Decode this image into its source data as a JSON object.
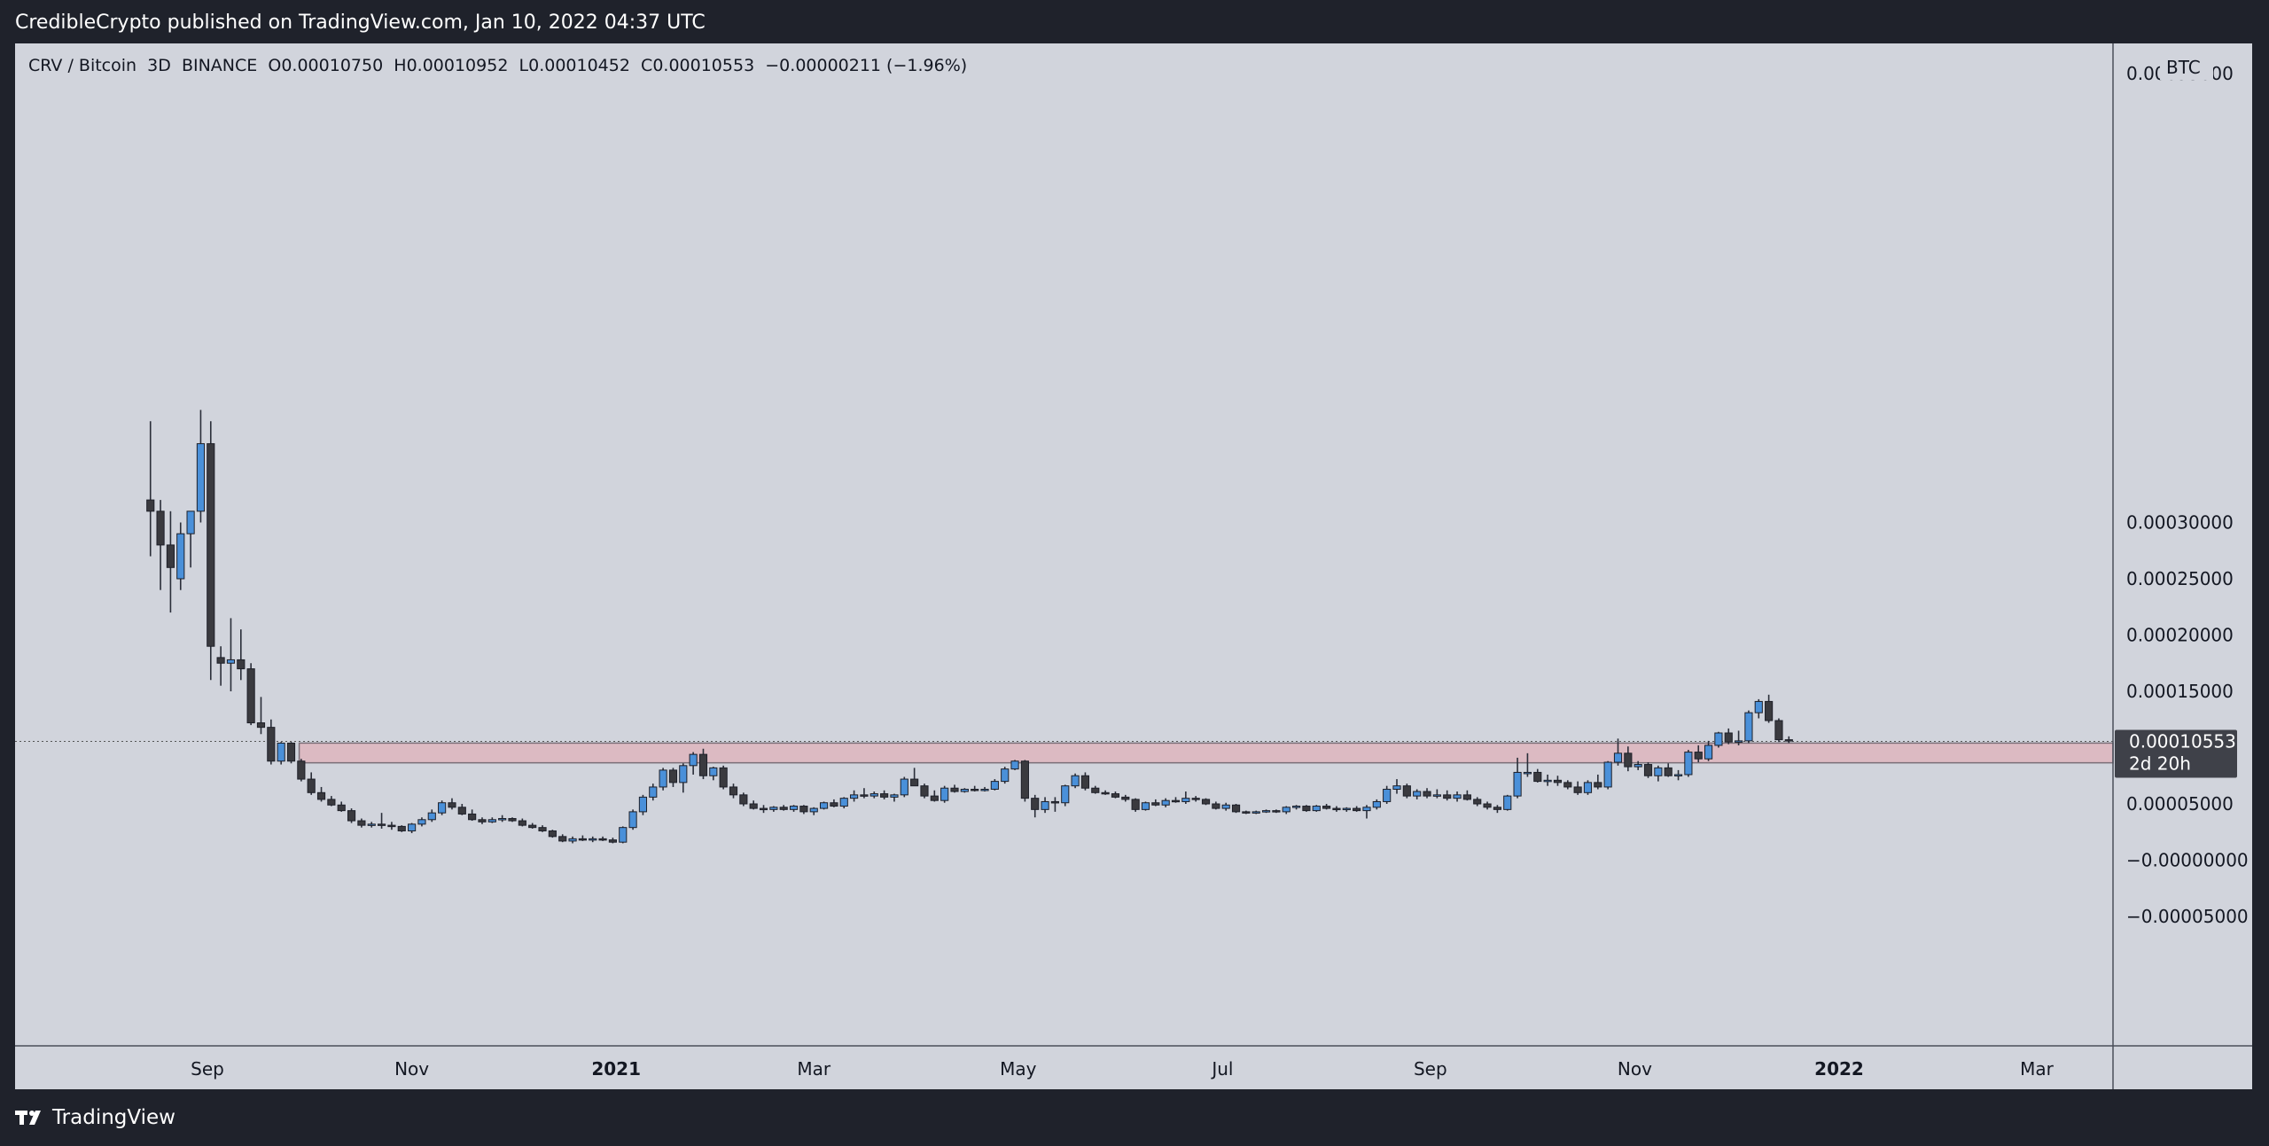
{
  "header": {
    "publisher_line": "CredibleCrypto published on TradingView.com, Jan 10, 2022 04:37 UTC"
  },
  "legend": {
    "symbol": "CRV / Bitcoin  3D  BINANCE",
    "open_label": "O",
    "open": "0.00010750",
    "high_label": "H",
    "high": "0.00010952",
    "low_label": "L",
    "low": "0.00010452",
    "close_label": "C",
    "close": "0.00010553",
    "change": "−0.00000211 (−1.96%)"
  },
  "footer": {
    "brand": "TradingView"
  },
  "price_badge": {
    "price": "0.00010553",
    "countdown": "2d 20h"
  },
  "colors": {
    "background": "#1f222b",
    "panel": "#d1d4dc",
    "up_candle": "#4a90d9",
    "down_candle": "#3a3a3f",
    "zone_fill": "#dcbac2",
    "badge": "#3f4149"
  },
  "chart_data": {
    "type": "candlestick",
    "symbol": "CRV / Bitcoin",
    "interval": "3D",
    "exchange": "BINANCE",
    "currency": "BTC",
    "ylim": [
      -8e-05,
      0.00037
    ],
    "y_ticks": [
      "0.00030000",
      "0.00025000",
      "0.00020000",
      "0.00015000",
      "0.00010000",
      "0.00005000",
      "−0.00000000",
      "−0.00005000"
    ],
    "y_tick_values": [
      0.0003,
      0.00025,
      0.0002,
      0.00015,
      0.0001,
      5e-05,
      0.0,
      -5e-05
    ],
    "x_ticks": [
      "Sep",
      "Nov",
      "2021",
      "Mar",
      "May",
      "Jul",
      "Sep",
      "Nov",
      "2022",
      "Mar"
    ],
    "x_tick_dates": [
      "2020-09-01",
      "2020-11-01",
      "2021-01-01",
      "2021-03-01",
      "2021-05-01",
      "2021-07-01",
      "2021-09-01",
      "2021-11-01",
      "2022-01-01",
      "2022-03-01"
    ],
    "bold_ticks": [
      "2021",
      "2022"
    ],
    "first_candle_date": "2020-08-15",
    "candle_interval_days": 3,
    "last_price": 0.00010553,
    "zone": {
      "low": 8.65e-05,
      "high": 0.000104,
      "color": "#dcbac2"
    },
    "candles": [
      [
        0.00032,
        0.00039,
        0.00027,
        0.00031
      ],
      [
        0.00031,
        0.00032,
        0.00024,
        0.00028
      ],
      [
        0.00028,
        0.00031,
        0.00022,
        0.00026
      ],
      [
        0.00025,
        0.0003,
        0.00024,
        0.00029
      ],
      [
        0.00029,
        0.00031,
        0.00026,
        0.00031
      ],
      [
        0.00031,
        0.0004,
        0.0003,
        0.00037
      ],
      [
        0.00037,
        0.00039,
        0.00016,
        0.00019
      ],
      [
        0.00018,
        0.00019,
        0.000155,
        0.000175
      ],
      [
        0.000175,
        0.000215,
        0.00015,
        0.000178
      ],
      [
        0.000178,
        0.000205,
        0.00016,
        0.00017
      ],
      [
        0.00017,
        0.000175,
        0.00012,
        0.000122
      ],
      [
        0.000122,
        0.000145,
        0.000112,
        0.000118
      ],
      [
        0.000118,
        0.000125,
        8.5e-05,
        8.8e-05
      ],
      [
        8.8e-05,
        0.000105,
        8.5e-05,
        0.000104
      ],
      [
        0.000104,
        0.000105,
        8.6e-05,
        8.8e-05
      ],
      [
        8.8e-05,
        9e-05,
        7e-05,
        7.2e-05
      ],
      [
        7.2e-05,
        7.8e-05,
        5.8e-05,
        6e-05
      ],
      [
        6e-05,
        6.5e-05,
        5.2e-05,
        5.4e-05
      ],
      [
        5.4e-05,
        5.7e-05,
        4.8e-05,
        4.9e-05
      ],
      [
        4.9e-05,
        5.2e-05,
        4.3e-05,
        4.4e-05
      ],
      [
        4.4e-05,
        4.6e-05,
        3.3e-05,
        3.5e-05
      ],
      [
        3.5e-05,
        3.7e-05,
        2.9e-05,
        3.1e-05
      ],
      [
        3.1e-05,
        3.4e-05,
        2.9e-05,
        3.2e-05
      ],
      [
        3.2e-05,
        4.2e-05,
        2.8e-05,
        3.1e-05
      ],
      [
        3.1e-05,
        3.4e-05,
        2.7e-05,
        3e-05
      ],
      [
        3e-05,
        3.1e-05,
        2.5e-05,
        2.6e-05
      ],
      [
        2.6e-05,
        3.3e-05,
        2.4e-05,
        3.2e-05
      ],
      [
        3.2e-05,
        3.8e-05,
        3e-05,
        3.6e-05
      ],
      [
        3.6e-05,
        4.5e-05,
        3.4e-05,
        4.2e-05
      ],
      [
        4.2e-05,
        5.3e-05,
        4e-05,
        5.1e-05
      ],
      [
        5.1e-05,
        5.5e-05,
        4.5e-05,
        4.7e-05
      ],
      [
        4.7e-05,
        5e-05,
        4e-05,
        4.1e-05
      ],
      [
        4.1e-05,
        4.5e-05,
        3.5e-05,
        3.6e-05
      ],
      [
        3.6e-05,
        3.8e-05,
        3.2e-05,
        3.4e-05
      ],
      [
        3.4e-05,
        3.8e-05,
        3.3e-05,
        3.6e-05
      ],
      [
        3.6e-05,
        4e-05,
        3.4e-05,
        3.7e-05
      ],
      [
        3.7e-05,
        3.8e-05,
        3.4e-05,
        3.5e-05
      ],
      [
        3.5e-05,
        3.7e-05,
        3e-05,
        3.1e-05
      ],
      [
        3.1e-05,
        3.3e-05,
        2.8e-05,
        2.9e-05
      ],
      [
        2.9e-05,
        3.1e-05,
        2.5e-05,
        2.6e-05
      ],
      [
        2.6e-05,
        2.7e-05,
        2e-05,
        2.1e-05
      ],
      [
        2.1e-05,
        2.3e-05,
        1.6e-05,
        1.7e-05
      ],
      [
        1.7e-05,
        2.1e-05,
        1.5e-05,
        1.9e-05
      ],
      [
        1.9e-05,
        2.2e-05,
        1.7e-05,
        1.8e-05
      ],
      [
        1.8e-05,
        2.1e-05,
        1.6e-05,
        1.9e-05
      ],
      [
        1.9e-05,
        2.1e-05,
        1.7e-05,
        1.8e-05
      ],
      [
        1.8e-05,
        2e-05,
        1.5e-05,
        1.6e-05
      ],
      [
        1.6e-05,
        3e-05,
        1.5e-05,
        2.9e-05
      ],
      [
        2.9e-05,
        4.5e-05,
        2.7e-05,
        4.3e-05
      ],
      [
        4.3e-05,
        5.8e-05,
        4e-05,
        5.6e-05
      ],
      [
        5.6e-05,
        6.8e-05,
        5.3e-05,
        6.5e-05
      ],
      [
        6.5e-05,
        8.2e-05,
        6.2e-05,
        8e-05
      ],
      [
        8e-05,
        8.2e-05,
        6.5e-05,
        6.9e-05
      ],
      [
        6.9e-05,
        8.6e-05,
        6e-05,
        8.4e-05
      ],
      [
        8.4e-05,
        9.6e-05,
        7.6e-05,
        9.4e-05
      ],
      [
        9.4e-05,
        9.9e-05,
        7.2e-05,
        7.5e-05
      ],
      [
        7.5e-05,
        8.3e-05,
        7.1e-05,
        8.2e-05
      ],
      [
        8.2e-05,
        8.4e-05,
        6.3e-05,
        6.5e-05
      ],
      [
        6.5e-05,
        6.8e-05,
        5.5e-05,
        5.8e-05
      ],
      [
        5.8e-05,
        6e-05,
        4.8e-05,
        5e-05
      ],
      [
        5e-05,
        5.3e-05,
        4.5e-05,
        4.6e-05
      ],
      [
        4.6e-05,
        4.9e-05,
        4.2e-05,
        4.5e-05
      ],
      [
        4.5e-05,
        4.8e-05,
        4.3e-05,
        4.7e-05
      ],
      [
        4.7e-05,
        4.9e-05,
        4.4e-05,
        4.5e-05
      ],
      [
        4.5e-05,
        4.9e-05,
        4.3e-05,
        4.8e-05
      ],
      [
        4.8e-05,
        4.9e-05,
        4.1e-05,
        4.3e-05
      ],
      [
        4.3e-05,
        4.7e-05,
        4e-05,
        4.6e-05
      ],
      [
        4.6e-05,
        5.2e-05,
        4.5e-05,
        5.1e-05
      ],
      [
        5.1e-05,
        5.4e-05,
        4.7e-05,
        4.8e-05
      ],
      [
        4.8e-05,
        5.6e-05,
        4.6e-05,
        5.5e-05
      ],
      [
        5.5e-05,
        6.2e-05,
        5.2e-05,
        5.8e-05
      ],
      [
        5.8e-05,
        6.4e-05,
        5.5e-05,
        5.7e-05
      ],
      [
        5.7e-05,
        6.1e-05,
        5.5e-05,
        5.9e-05
      ],
      [
        5.9e-05,
        6.2e-05,
        5.4e-05,
        5.6e-05
      ],
      [
        5.6e-05,
        5.9e-05,
        5.2e-05,
        5.8e-05
      ],
      [
        5.8e-05,
        7.4e-05,
        5.6e-05,
        7.2e-05
      ],
      [
        7.2e-05,
        8.2e-05,
        6.8e-05,
        6.6e-05
      ],
      [
        6.6e-05,
        6.8e-05,
        5.5e-05,
        5.7e-05
      ],
      [
        5.7e-05,
        6.2e-05,
        5.2e-05,
        5.3e-05
      ],
      [
        5.3e-05,
        6.6e-05,
        5.1e-05,
        6.4e-05
      ],
      [
        6.4e-05,
        6.7e-05,
        6e-05,
        6.1e-05
      ],
      [
        6.1e-05,
        6.4e-05,
        6e-05,
        6.3e-05
      ],
      [
        6.3e-05,
        6.6e-05,
        6.1e-05,
        6.2e-05
      ],
      [
        6.2e-05,
        6.5e-05,
        6.1e-05,
        6.3e-05
      ],
      [
        6.3e-05,
        7.2e-05,
        6.2e-05,
        7e-05
      ],
      [
        7e-05,
        8.3e-05,
        6.8e-05,
        8.1e-05
      ],
      [
        8.1e-05,
        8.9e-05,
        8e-05,
        8.8e-05
      ],
      [
        8.8e-05,
        8.9e-05,
        5.2e-05,
        5.5e-05
      ],
      [
        5.5e-05,
        5.8e-05,
        3.8e-05,
        4.5e-05
      ],
      [
        4.5e-05,
        5.6e-05,
        4.2e-05,
        5.2e-05
      ],
      [
        5.2e-05,
        5.6e-05,
        4.3e-05,
        5.1e-05
      ],
      [
        5.1e-05,
        6.7e-05,
        4.8e-05,
        6.6e-05
      ],
      [
        6.6e-05,
        7.7e-05,
        6.4e-05,
        7.5e-05
      ],
      [
        7.5e-05,
        7.8e-05,
        6.2e-05,
        6.4e-05
      ],
      [
        6.4e-05,
        6.6e-05,
        5.9e-05,
        6e-05
      ],
      [
        6e-05,
        6.2e-05,
        5.8e-05,
        5.9e-05
      ],
      [
        5.9e-05,
        6.1e-05,
        5.5e-05,
        5.6e-05
      ],
      [
        5.6e-05,
        5.8e-05,
        5.2e-05,
        5.4e-05
      ],
      [
        5.4e-05,
        5.5e-05,
        4.3e-05,
        4.5e-05
      ],
      [
        4.5e-05,
        5.2e-05,
        4.4e-05,
        5.1e-05
      ],
      [
        5.1e-05,
        5.4e-05,
        4.8e-05,
        4.9e-05
      ],
      [
        4.9e-05,
        5.5e-05,
        4.7e-05,
        5.3e-05
      ],
      [
        5.3e-05,
        5.6e-05,
        5.1e-05,
        5.2e-05
      ],
      [
        5.2e-05,
        6.1e-05,
        5e-05,
        5.5e-05
      ],
      [
        5.5e-05,
        5.7e-05,
        5.2e-05,
        5.4e-05
      ],
      [
        5.4e-05,
        5.5e-05,
        4.9e-05,
        5e-05
      ],
      [
        5e-05,
        5.2e-05,
        4.5e-05,
        4.6e-05
      ],
      [
        4.6e-05,
        5.1e-05,
        4.4e-05,
        4.9e-05
      ],
      [
        4.9e-05,
        5e-05,
        4.2e-05,
        4.3e-05
      ],
      [
        4.3e-05,
        4.4e-05,
        4.1e-05,
        4.2e-05
      ],
      [
        4.2e-05,
        4.4e-05,
        4.1e-05,
        4.3e-05
      ],
      [
        4.3e-05,
        4.5e-05,
        4.2e-05,
        4.4e-05
      ],
      [
        4.4e-05,
        4.5e-05,
        4.2e-05,
        4.3e-05
      ],
      [
        4.3e-05,
        4.8e-05,
        4.1e-05,
        4.7e-05
      ],
      [
        4.7e-05,
        4.9e-05,
        4.5e-05,
        4.8e-05
      ],
      [
        4.8e-05,
        4.9e-05,
        4.3e-05,
        4.4e-05
      ],
      [
        4.4e-05,
        4.9e-05,
        4.3e-05,
        4.8e-05
      ],
      [
        4.8e-05,
        5e-05,
        4.5e-05,
        4.6e-05
      ],
      [
        4.6e-05,
        4.8e-05,
        4.3e-05,
        4.5e-05
      ],
      [
        4.5e-05,
        4.7e-05,
        4.3e-05,
        4.6e-05
      ],
      [
        4.6e-05,
        4.8e-05,
        4.3e-05,
        4.4e-05
      ],
      [
        4.4e-05,
        4.9e-05,
        3.7e-05,
        4.7e-05
      ],
      [
        4.7e-05,
        5.4e-05,
        4.5e-05,
        5.2e-05
      ],
      [
        5.2e-05,
        6.6e-05,
        5e-05,
        6.3e-05
      ],
      [
        6.3e-05,
        7.2e-05,
        5.9e-05,
        6.6e-05
      ],
      [
        6.6e-05,
        6.8e-05,
        5.5e-05,
        5.7e-05
      ],
      [
        5.7e-05,
        6.3e-05,
        5.4e-05,
        6.1e-05
      ],
      [
        6.1e-05,
        6.4e-05,
        5.5e-05,
        5.7e-05
      ],
      [
        5.7e-05,
        6.3e-05,
        5.5e-05,
        5.8e-05
      ],
      [
        5.8e-05,
        6.2e-05,
        5.3e-05,
        5.5e-05
      ],
      [
        5.5e-05,
        6.1e-05,
        5.2e-05,
        5.8e-05
      ],
      [
        5.8e-05,
        6.2e-05,
        5.3e-05,
        5.4e-05
      ],
      [
        5.4e-05,
        5.6e-05,
        4.8e-05,
        5e-05
      ],
      [
        5e-05,
        5.2e-05,
        4.5e-05,
        4.7e-05
      ],
      [
        4.7e-05,
        4.9e-05,
        4.2e-05,
        4.5e-05
      ],
      [
        4.5e-05,
        5.8e-05,
        4.4e-05,
        5.7e-05
      ],
      [
        5.7e-05,
        9.1e-05,
        5.5e-05,
        7.8e-05
      ],
      [
        7.8e-05,
        9.5e-05,
        7.4e-05,
        7.8e-05
      ],
      [
        7.8e-05,
        8.1e-05,
        6.9e-05,
        7e-05
      ],
      [
        7e-05,
        7.6e-05,
        6.6e-05,
        7.1e-05
      ],
      [
        7.1e-05,
        7.5e-05,
        6.6e-05,
        6.9e-05
      ],
      [
        6.9e-05,
        7.1e-05,
        6.3e-05,
        6.5e-05
      ],
      [
        6.5e-05,
        7e-05,
        5.8e-05,
        6e-05
      ],
      [
        6e-05,
        7.1e-05,
        5.8e-05,
        6.9e-05
      ],
      [
        6.9e-05,
        7.6e-05,
        6.3e-05,
        6.5e-05
      ],
      [
        6.5e-05,
        8.8e-05,
        6.3e-05,
        8.7e-05
      ],
      [
        8.7e-05,
        0.000108,
        8.4e-05,
        9.5e-05
      ],
      [
        9.5e-05,
        0.000101,
        7.9e-05,
        8.3e-05
      ],
      [
        8.3e-05,
        8.8e-05,
        8e-05,
        8.5e-05
      ],
      [
        8.5e-05,
        8.7e-05,
        7.3e-05,
        7.5e-05
      ],
      [
        7.5e-05,
        8.4e-05,
        7e-05,
        8.2e-05
      ],
      [
        8.2e-05,
        8.6e-05,
        7.4e-05,
        7.5e-05
      ],
      [
        7.5e-05,
        8e-05,
        7.1e-05,
        7.6e-05
      ],
      [
        7.6e-05,
        9.8e-05,
        7.4e-05,
        9.6e-05
      ],
      [
        9.6e-05,
        0.000102,
        8.7e-05,
        9e-05
      ],
      [
        9e-05,
        0.000106,
        8.8e-05,
        0.000102
      ],
      [
        0.000102,
        0.000114,
        0.0001,
        0.000113
      ],
      [
        0.000113,
        0.000117,
        0.000103,
        0.000105
      ],
      [
        0.000105,
        0.000115,
        0.000102,
        0.000106
      ],
      [
        0.000106,
        0.000133,
        0.000104,
        0.000131
      ],
      [
        0.000131,
        0.000143,
        0.000126,
        0.000141
      ],
      [
        0.000141,
        0.000147,
        0.000122,
        0.000124
      ],
      [
        0.000124,
        0.000126,
        0.000105,
        0.000107
      ],
      [
        0.000107,
        0.00011,
        0.000104,
        0.000106
      ]
    ]
  }
}
